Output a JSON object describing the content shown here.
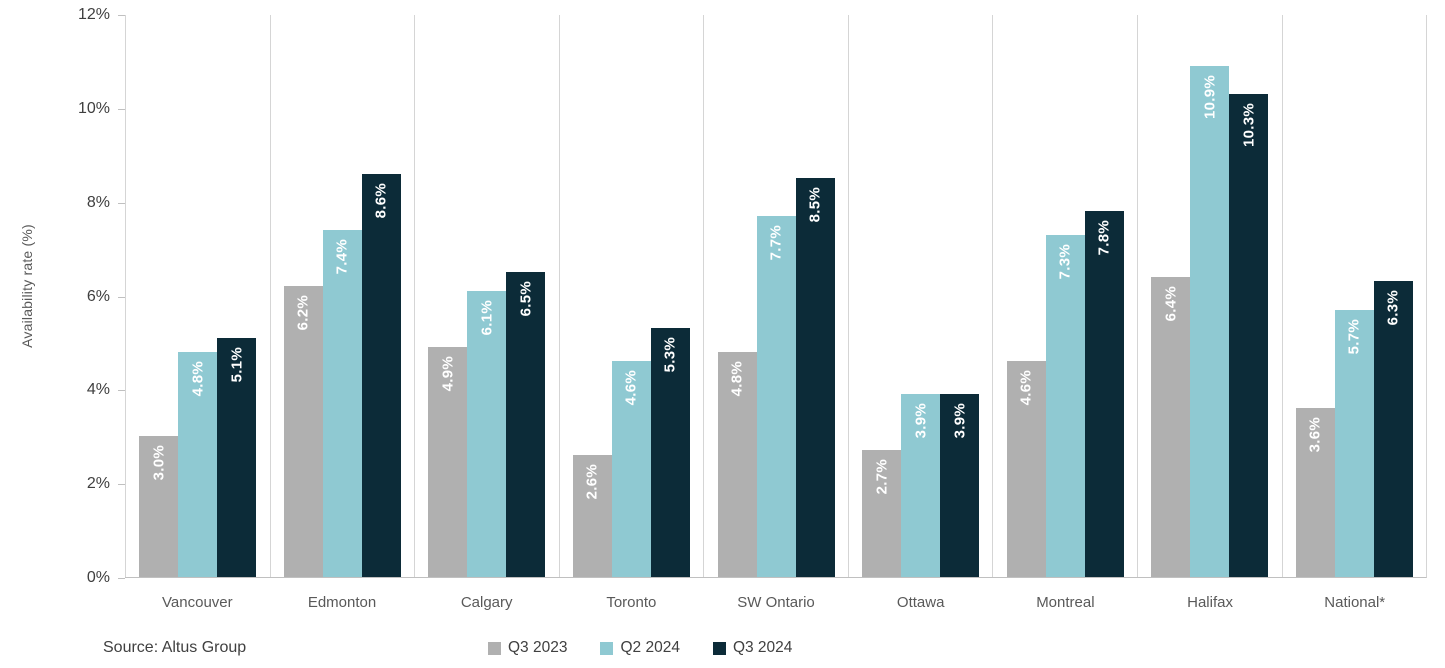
{
  "chart_data": {
    "type": "bar",
    "title": "",
    "xlabel": "",
    "ylabel": "Availability rate (%)",
    "ylim": [
      0,
      12
    ],
    "ytick_step": 2,
    "ytick_labels": [
      "0%",
      "2%",
      "4%",
      "6%",
      "8%",
      "10%",
      "12%"
    ],
    "grid": "vertical category separators only",
    "legend_position": "bottom-center",
    "data_label_format": "one decimal + %",
    "data_label_color": "#ffffff",
    "categories": [
      "Vancouver",
      "Edmonton",
      "Calgary",
      "Toronto",
      "SW Ontario",
      "Ottawa",
      "Montreal",
      "Halifax",
      "National*"
    ],
    "series": [
      {
        "name": "Q3 2023",
        "color": "#b0b0b0",
        "values": [
          3.0,
          6.2,
          4.9,
          2.6,
          4.8,
          2.7,
          4.6,
          6.4,
          3.6
        ]
      },
      {
        "name": "Q2 2024",
        "color": "#8fc9d2",
        "values": [
          4.8,
          7.4,
          6.1,
          4.6,
          7.7,
          3.9,
          7.3,
          10.9,
          5.7
        ]
      },
      {
        "name": "Q3 2024",
        "color": "#0c2b38",
        "values": [
          5.1,
          8.6,
          6.5,
          5.3,
          8.5,
          3.9,
          7.8,
          10.3,
          6.3
        ]
      }
    ]
  },
  "axis_colors": {
    "separator": "#d5d5d5",
    "baseline": "#c0c0c0",
    "tick_label": "#3f3f3f",
    "category_label": "#595959"
  },
  "source": {
    "label": "Source: Altus Group"
  }
}
